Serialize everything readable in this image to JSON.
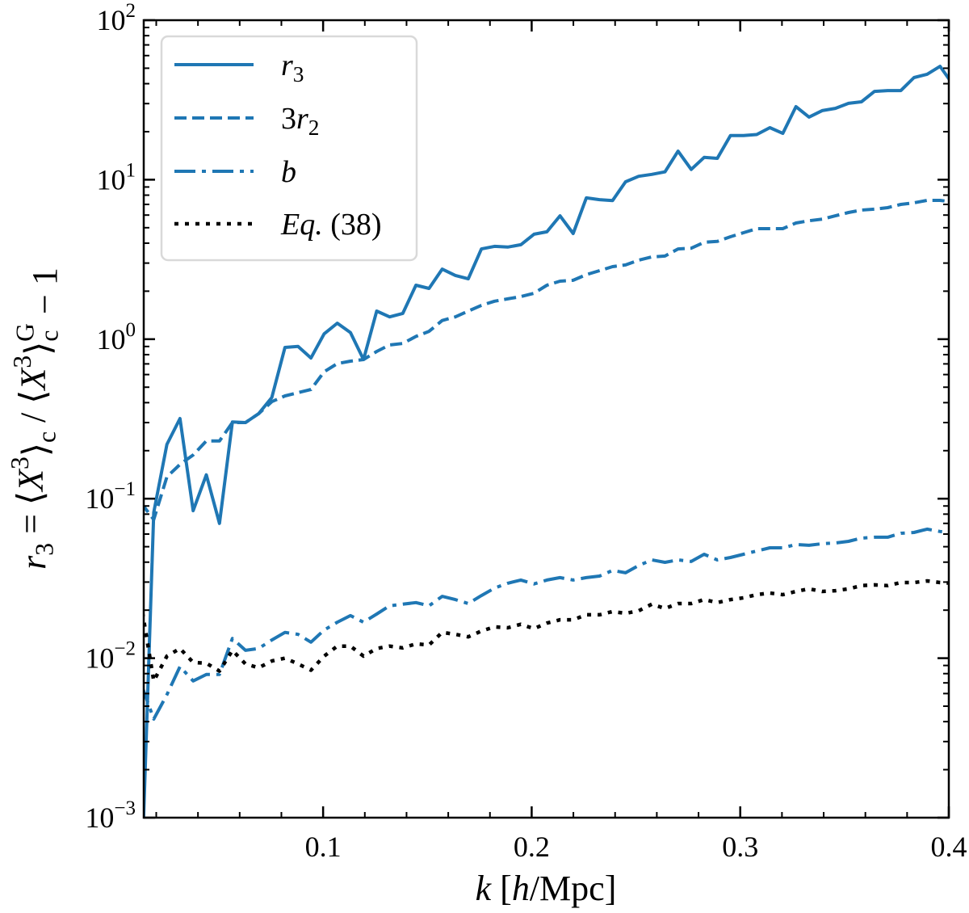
{
  "chart_data": {
    "type": "line",
    "title": "",
    "xlabel_parts": [
      {
        "t": "k",
        "i": true
      },
      {
        "t": " ["
      },
      {
        "t": "h",
        "i": true
      },
      {
        "t": "/Mpc]"
      }
    ],
    "ylabel_parts": [
      {
        "t": "r",
        "i": true
      },
      {
        "t": "3",
        "sub": true
      },
      {
        "t": " = ⟨"
      },
      {
        "t": "X",
        "i": true
      },
      {
        "t": "3",
        "sup": true
      },
      {
        "t": "⟩"
      },
      {
        "t": "c",
        "sub": true
      },
      {
        "t": " / ⟨"
      },
      {
        "t": "X",
        "i": true
      },
      {
        "t": "3",
        "sup": true
      },
      {
        "t": "⟩"
      },
      {
        "t": "c",
        "sub": true
      },
      {
        "t": "G",
        "sup": true,
        "stack": true
      },
      {
        "t": " − 1"
      }
    ],
    "xlim": [
      0.014,
      0.4
    ],
    "ylim": [
      0.001,
      100
    ],
    "yscale": "log",
    "grid": false,
    "legend_position": "top-left",
    "x_ticks": [
      {
        "value": 0.1,
        "label": "0.1"
      },
      {
        "value": 0.2,
        "label": "0.2"
      },
      {
        "value": 0.3,
        "label": "0.3"
      },
      {
        "value": 0.4,
        "label": "0.4"
      }
    ],
    "x_minor_step": 0.02,
    "y_ticks": [
      {
        "value": 0.001,
        "base": "10",
        "exp": "−3"
      },
      {
        "value": 0.01,
        "base": "10",
        "exp": "−2"
      },
      {
        "value": 0.1,
        "base": "10",
        "exp": "−1"
      },
      {
        "value": 1,
        "base": "10",
        "exp": "0"
      },
      {
        "value": 10,
        "base": "10",
        "exp": "1"
      },
      {
        "value": 100,
        "base": "10",
        "exp": "2"
      }
    ],
    "x": [
      0.0126,
      0.0188,
      0.0251,
      0.0314,
      0.0377,
      0.044,
      0.0503,
      0.0565,
      0.0628,
      0.0691,
      0.0754,
      0.0817,
      0.088,
      0.0942,
      0.1005,
      0.1068,
      0.1131,
      0.1194,
      0.1257,
      0.1319,
      0.1382,
      0.1445,
      0.1508,
      0.1571,
      0.1634,
      0.1696,
      0.1759,
      0.1822,
      0.1885,
      0.1948,
      0.2011,
      0.2073,
      0.2136,
      0.2199,
      0.2262,
      0.2325,
      0.2388,
      0.245,
      0.2513,
      0.2576,
      0.2639,
      0.2702,
      0.2765,
      0.2827,
      0.289,
      0.2953,
      0.3016,
      0.3079,
      0.3142,
      0.3204,
      0.3267,
      0.333,
      0.3393,
      0.3456,
      0.3519,
      0.3581,
      0.3644,
      0.3707,
      0.377,
      0.3833,
      0.3896,
      0.3958,
      0.4021
    ],
    "series": [
      {
        "name": "r3",
        "label_parts": [
          {
            "t": "r",
            "i": true
          },
          {
            "t": "3",
            "sub": true
          }
        ],
        "color": "#1f77b4",
        "style": "solid",
        "values": [
          0.0003,
          0.082,
          0.219,
          0.318,
          0.084,
          0.141,
          0.07,
          0.303,
          0.3,
          0.341,
          0.431,
          0.888,
          0.9,
          0.762,
          1.08,
          1.26,
          1.1,
          0.745,
          1.5,
          1.38,
          1.45,
          2.18,
          2.08,
          2.75,
          2.51,
          2.39,
          3.68,
          3.82,
          3.78,
          3.91,
          4.55,
          4.71,
          5.94,
          4.6,
          7.69,
          7.5,
          7.4,
          9.7,
          10.5,
          10.8,
          11.2,
          15.1,
          11.6,
          13.8,
          13.6,
          18.9,
          18.9,
          19.2,
          21.2,
          19.5,
          28.7,
          24.7,
          27.1,
          28.0,
          30.1,
          30.8,
          35.8,
          36.2,
          36.2,
          43.7,
          45.8,
          51.4,
          39.3
        ]
      },
      {
        "name": "3r2",
        "label_parts": [
          {
            "t": "3"
          },
          {
            "t": "r",
            "i": true
          },
          {
            "t": "2",
            "sub": true
          }
        ],
        "color": "#1f77b4",
        "style": "dashed",
        "values": [
          0.0946,
          0.074,
          0.137,
          0.164,
          0.188,
          0.23,
          0.23,
          0.3,
          0.3,
          0.341,
          0.406,
          0.441,
          0.462,
          0.484,
          0.625,
          0.703,
          0.728,
          0.745,
          0.838,
          0.92,
          0.94,
          1.04,
          1.12,
          1.31,
          1.38,
          1.5,
          1.63,
          1.73,
          1.79,
          1.85,
          1.94,
          2.18,
          2.31,
          2.34,
          2.54,
          2.69,
          2.85,
          2.92,
          3.13,
          3.28,
          3.32,
          3.68,
          3.72,
          4.05,
          4.1,
          4.39,
          4.65,
          4.93,
          4.93,
          4.93,
          5.35,
          5.53,
          5.66,
          5.94,
          6.23,
          6.45,
          6.53,
          6.68,
          7.0,
          7.16,
          7.42,
          7.42,
          7.25
        ]
      },
      {
        "name": "b",
        "label_parts": [
          {
            "t": "b",
            "i": true
          }
        ],
        "color": "#1f77b4",
        "style": "dashdot",
        "values": [
          0.007,
          0.00415,
          0.0059,
          0.00886,
          0.0072,
          0.0079,
          0.0079,
          0.0133,
          0.0112,
          0.0115,
          0.013,
          0.0145,
          0.0141,
          0.0126,
          0.015,
          0.0168,
          0.0185,
          0.0168,
          0.0189,
          0.0213,
          0.0218,
          0.0223,
          0.0213,
          0.0244,
          0.0233,
          0.022,
          0.0247,
          0.0275,
          0.0295,
          0.0309,
          0.0292,
          0.0309,
          0.032,
          0.0309,
          0.032,
          0.0327,
          0.0355,
          0.0343,
          0.0381,
          0.0413,
          0.0399,
          0.0413,
          0.0404,
          0.0448,
          0.0413,
          0.0428,
          0.0448,
          0.047,
          0.0492,
          0.0492,
          0.0516,
          0.051,
          0.0522,
          0.0528,
          0.054,
          0.0566,
          0.0573,
          0.0573,
          0.0607,
          0.0614,
          0.0644,
          0.0623,
          0.0607
        ]
      },
      {
        "name": "Eq. (38)",
        "label_parts": [
          {
            "t": "Eq.",
            "i": true
          },
          {
            "t": " (38)"
          }
        ],
        "color": "#000000",
        "style": "dotted",
        "values": [
          0.0225,
          0.0072,
          0.0103,
          0.0115,
          0.0094,
          0.0093,
          0.0083,
          0.0112,
          0.0092,
          0.0087,
          0.0096,
          0.01,
          0.0092,
          0.0084,
          0.0103,
          0.0119,
          0.0119,
          0.0103,
          0.0115,
          0.0119,
          0.0116,
          0.0123,
          0.0121,
          0.0145,
          0.0141,
          0.0136,
          0.0148,
          0.0157,
          0.0155,
          0.0163,
          0.0153,
          0.0166,
          0.0174,
          0.0174,
          0.0187,
          0.0187,
          0.0196,
          0.0191,
          0.0198,
          0.0218,
          0.0205,
          0.022,
          0.022,
          0.0233,
          0.0223,
          0.0233,
          0.0239,
          0.025,
          0.0256,
          0.025,
          0.0262,
          0.0272,
          0.0262,
          0.0265,
          0.0272,
          0.0285,
          0.0288,
          0.0285,
          0.0298,
          0.0298,
          0.0305,
          0.0298,
          0.0295
        ]
      }
    ]
  }
}
